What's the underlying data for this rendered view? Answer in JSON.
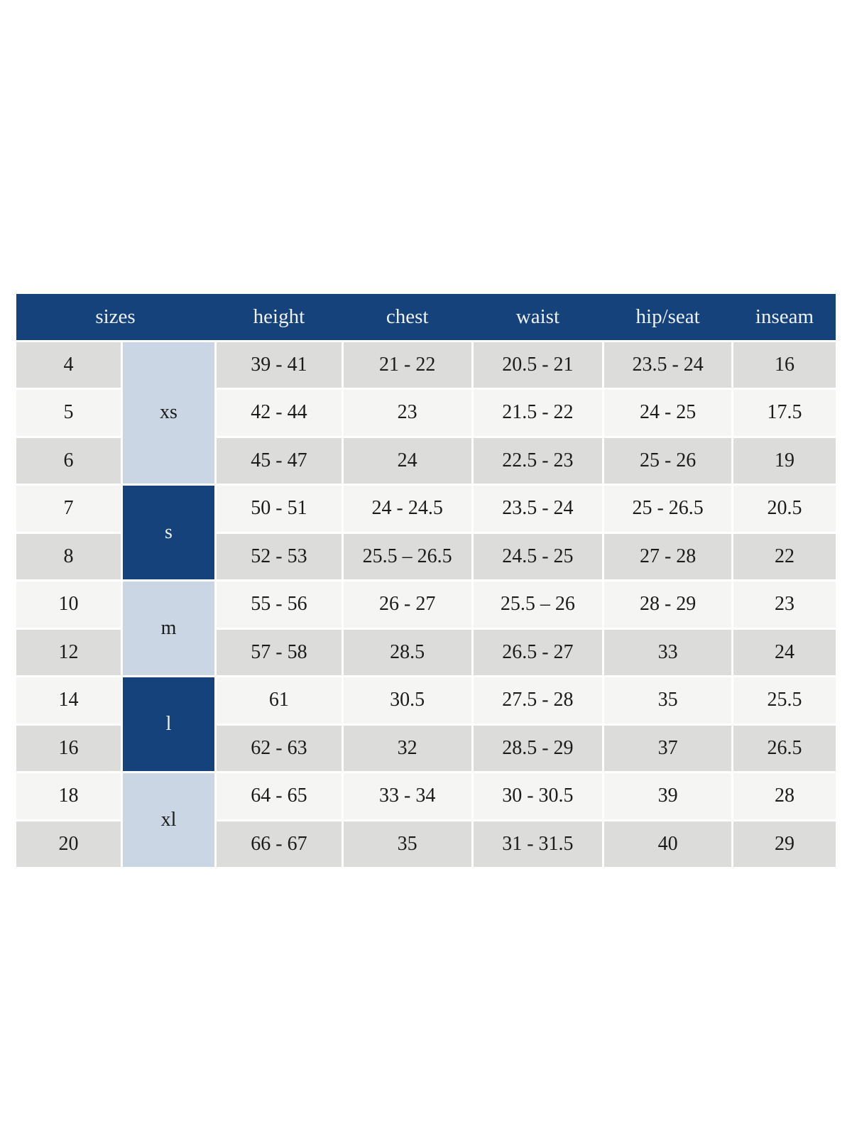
{
  "colors": {
    "page_bg": "#ffffff",
    "header_bg": "#16427b",
    "header_text": "#eef1f5",
    "group_light": "#cad6e4",
    "row_gray": "#dcdcda",
    "row_light": "#f5f5f4",
    "body_text": "#1b1b1b"
  },
  "chart_data": {
    "type": "table",
    "columns": [
      "sizes",
      "height",
      "chest",
      "waist",
      "hip/seat",
      "inseam"
    ],
    "size_groups": [
      {
        "label": "xs",
        "sizes": [
          "4",
          "5",
          "6"
        ],
        "variant": "light-blue"
      },
      {
        "label": "s",
        "sizes": [
          "7",
          "8"
        ],
        "variant": "navy"
      },
      {
        "label": "m",
        "sizes": [
          "10",
          "12"
        ],
        "variant": "light-blue"
      },
      {
        "label": "l",
        "sizes": [
          "14",
          "16"
        ],
        "variant": "navy"
      },
      {
        "label": "xl",
        "sizes": [
          "18",
          "20"
        ],
        "variant": "light-blue"
      }
    ],
    "rows": [
      {
        "size": "4",
        "height": "39 - 41",
        "chest": "21 - 22",
        "waist": "20.5 - 21",
        "hip_seat": "23.5 - 24",
        "inseam": "16"
      },
      {
        "size": "5",
        "height": "42 - 44",
        "chest": "23",
        "waist": "21.5 - 22",
        "hip_seat": "24 - 25",
        "inseam": "17.5"
      },
      {
        "size": "6",
        "height": "45 - 47",
        "chest": "24",
        "waist": "22.5 - 23",
        "hip_seat": "25 - 26",
        "inseam": "19"
      },
      {
        "size": "7",
        "height": "50 - 51",
        "chest": "24 - 24.5",
        "waist": "23.5 - 24",
        "hip_seat": "25 - 26.5",
        "inseam": "20.5"
      },
      {
        "size": "8",
        "height": "52 - 53",
        "chest": "25.5 – 26.5",
        "waist": "24.5 - 25",
        "hip_seat": "27 - 28",
        "inseam": "22"
      },
      {
        "size": "10",
        "height": "55 - 56",
        "chest": "26 - 27",
        "waist": "25.5 – 26",
        "hip_seat": "28 - 29",
        "inseam": "23"
      },
      {
        "size": "12",
        "height": "57 - 58",
        "chest": "28.5",
        "waist": "26.5 - 27",
        "hip_seat": "33",
        "inseam": "24"
      },
      {
        "size": "14",
        "height": "61",
        "chest": "30.5",
        "waist": "27.5 - 28",
        "hip_seat": "35",
        "inseam": "25.5"
      },
      {
        "size": "16",
        "height": "62 - 63",
        "chest": "32",
        "waist": "28.5 - 29",
        "hip_seat": "37",
        "inseam": "26.5"
      },
      {
        "size": "18",
        "height": "64 - 65",
        "chest": "33 - 34",
        "waist": "30 - 30.5",
        "hip_seat": "39",
        "inseam": "28"
      },
      {
        "size": "20",
        "height": "66 - 67",
        "chest": "35",
        "waist": "31 - 31.5",
        "hip_seat": "40",
        "inseam": "29"
      }
    ]
  }
}
